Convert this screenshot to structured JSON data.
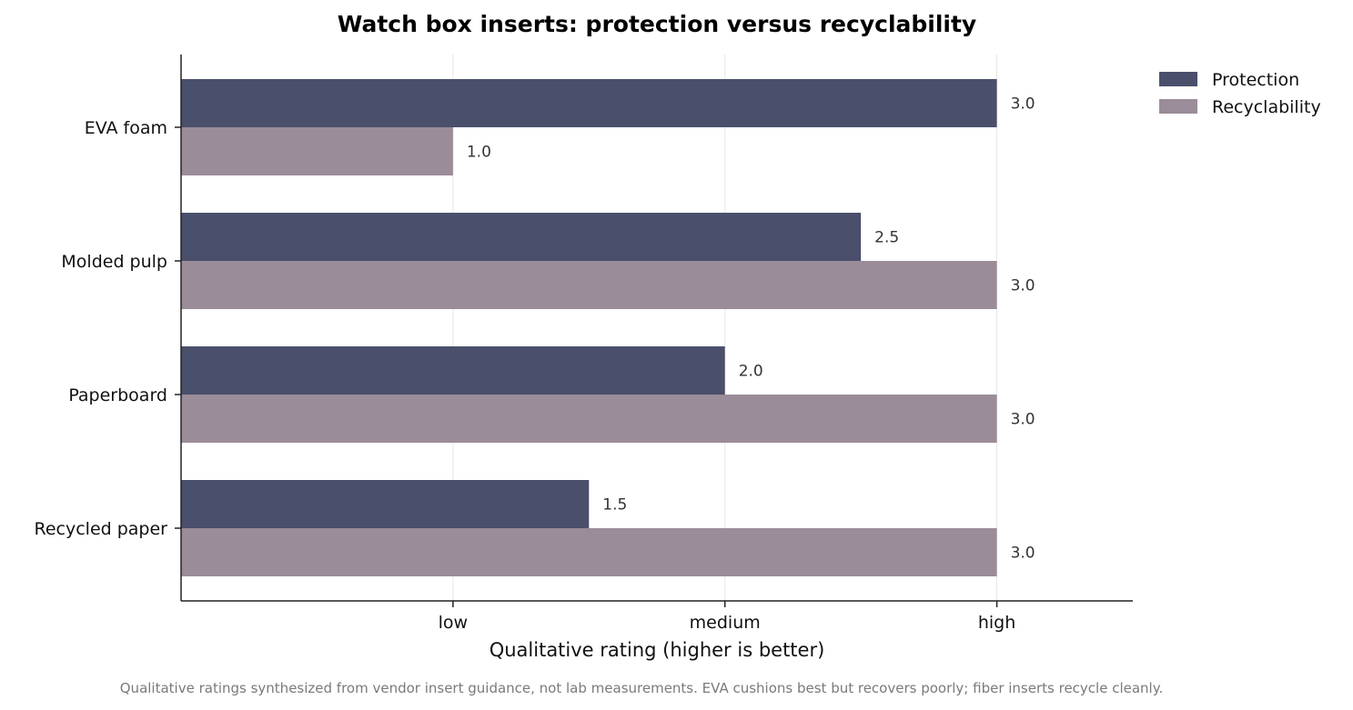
{
  "chart_data": {
    "type": "bar",
    "orientation": "horizontal",
    "title": "Watch box inserts: protection versus recyclability",
    "xlabel": "Qualitative rating (higher is better)",
    "ylabel": "",
    "categories": [
      "EVA foam",
      "Molded pulp",
      "Paperboard",
      "Recycled paper"
    ],
    "series": [
      {
        "name": "Protection",
        "values": [
          3.0,
          2.5,
          2.0,
          1.5
        ],
        "color": "#4a4f6b"
      },
      {
        "name": "Recyclability",
        "values": [
          1.0,
          3.0,
          3.0,
          3.0
        ],
        "color": "#9b8c99"
      }
    ],
    "value_labels": [
      [
        "3.0",
        "2.5",
        "2.0",
        "1.5"
      ],
      [
        "1.0",
        "3.0",
        "3.0",
        "3.0"
      ]
    ],
    "x_ticks": [
      {
        "value": 1,
        "label": "low"
      },
      {
        "value": 2,
        "label": "medium"
      },
      {
        "value": 3,
        "label": "high"
      }
    ],
    "xlim": [
      0,
      3.5
    ],
    "grid": "vertical",
    "legend": "top-right",
    "caption": "Qualitative ratings synthesized from vendor insert guidance, not lab measurements. EVA cushions best but recovers poorly; fiber inserts recycle cleanly."
  }
}
